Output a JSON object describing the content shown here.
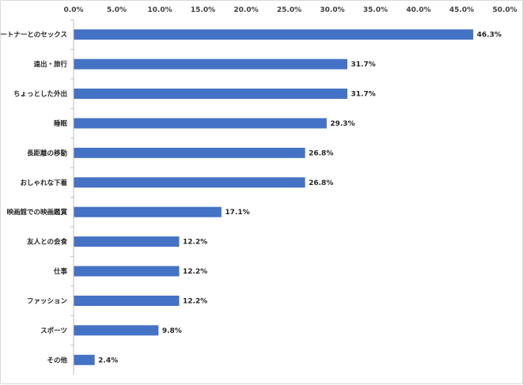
{
  "chart_data": {
    "type": "bar",
    "orientation": "horizontal",
    "categories": [
      "パートナーとのセックス",
      "遠出・旅行",
      "ちょっとした外出",
      "睡眠",
      "長距離の移動",
      "おしゃれな下着",
      "映画館での映画鑑賞",
      "友人との会食",
      "仕事",
      "ファッション",
      "スポーツ",
      "その他"
    ],
    "values": [
      46.3,
      31.7,
      31.7,
      29.3,
      26.8,
      26.8,
      17.1,
      12.2,
      12.2,
      12.2,
      9.8,
      2.4
    ],
    "value_labels": [
      "46.3%",
      "31.7%",
      "31.7%",
      "29.3%",
      "26.8%",
      "26.8%",
      "17.1%",
      "12.2%",
      "12.2%",
      "12.2%",
      "9.8%",
      "2.4%"
    ],
    "xlim": [
      0,
      50
    ],
    "x_ticks": [
      0,
      5,
      10,
      15,
      20,
      25,
      30,
      35,
      40,
      45,
      50
    ],
    "x_tick_labels": [
      "0.0%",
      "5.0%",
      "10.0%",
      "15.0%",
      "20.0%",
      "25.0%",
      "30.0%",
      "35.0%",
      "40.0%",
      "45.0%",
      "50.0%"
    ],
    "axis_position": "top",
    "grid": false,
    "legend": false,
    "bar_color": "#4472c4",
    "axis_color": "#bfbfbf"
  }
}
